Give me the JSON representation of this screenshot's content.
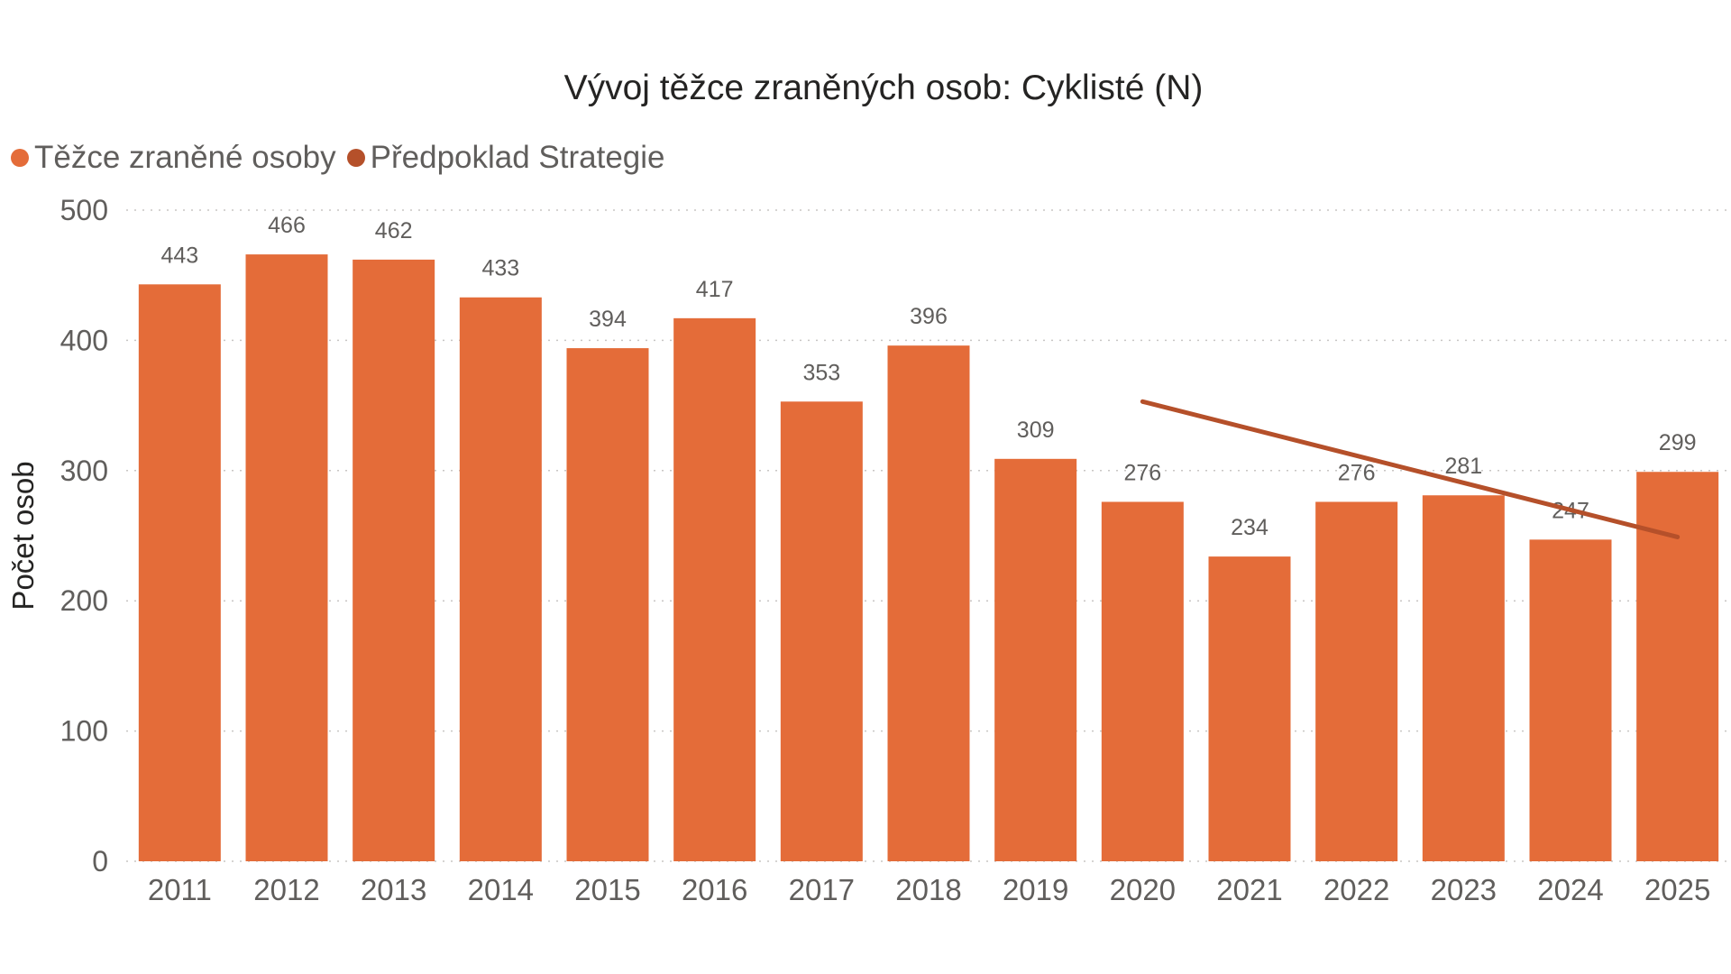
{
  "chart_data": {
    "type": "bar",
    "title": "Vývoj těžce zraněných osob: Cyklisté (N)",
    "xlabel": "",
    "ylabel": "Počet osob",
    "ylim": [
      0,
      500
    ],
    "yticks": [
      0,
      100,
      200,
      300,
      400,
      500
    ],
    "grid": true,
    "legend_position": "top-left",
    "categories": [
      "2011",
      "2012",
      "2013",
      "2014",
      "2015",
      "2016",
      "2017",
      "2018",
      "2019",
      "2020",
      "2021",
      "2022",
      "2023",
      "2024",
      "2025"
    ],
    "series": [
      {
        "name": "Těžce zraněné osoby",
        "type": "bar",
        "color": "#E46C39",
        "values": [
          443,
          466,
          462,
          433,
          394,
          417,
          353,
          396,
          309,
          276,
          234,
          276,
          281,
          247,
          299
        ],
        "data_labels": true
      },
      {
        "name": "Předpoklad Strategie",
        "type": "line",
        "color": "#B5502A",
        "x": [
          "2020",
          "2025"
        ],
        "values": [
          353,
          249
        ]
      }
    ]
  }
}
